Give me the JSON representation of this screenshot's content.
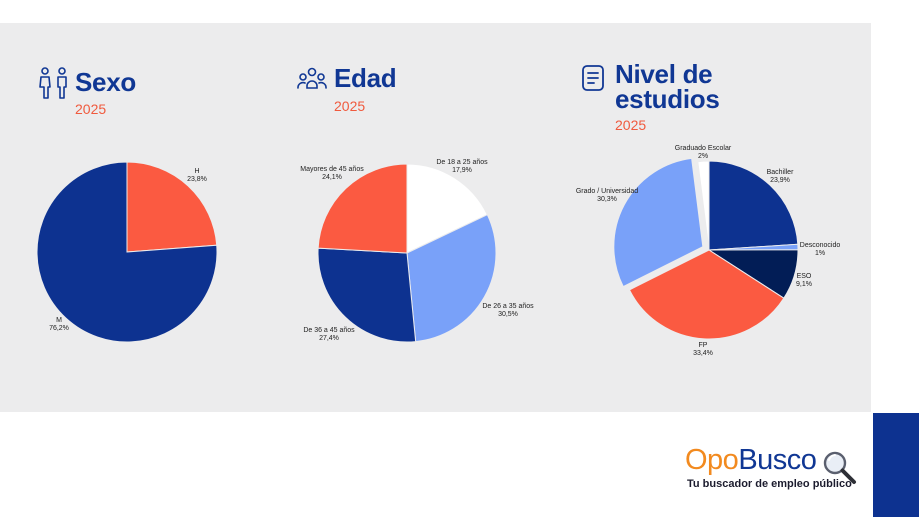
{
  "colors": {
    "navy": "#0d3290",
    "coral": "#fb5a41",
    "light_blue": "#79a1f9",
    "dark_navy": "#021d56",
    "white": "#ffffff",
    "background": "#ececed"
  },
  "sections": [
    {
      "title_line1": "Sexo",
      "title_line2": "",
      "year": "2025",
      "icon": "people-icon"
    },
    {
      "title_line1": "Edad",
      "title_line2": "",
      "year": "2025",
      "icon": "group-icon"
    },
    {
      "title_line1": "Nivel de",
      "title_line2": "estudios",
      "year": "2025",
      "icon": "book-icon"
    }
  ],
  "chart_data": [
    {
      "type": "pie",
      "title": "Sexo",
      "slices": [
        {
          "label": "H",
          "value": 23.8,
          "display": "23,8%",
          "color": "#fb5a41"
        },
        {
          "label": "M",
          "value": 76.2,
          "display": "76,2%",
          "color": "#0d3290"
        }
      ]
    },
    {
      "type": "pie",
      "title": "Edad",
      "slices": [
        {
          "label": "De 18 a 25 años",
          "value": 17.9,
          "display": "17,9%",
          "color": "#ffffff"
        },
        {
          "label": "De 26 a 35 años",
          "value": 30.5,
          "display": "30,5%",
          "color": "#79a1f9"
        },
        {
          "label": "De 36 a 45 años",
          "value": 27.4,
          "display": "27,4%",
          "color": "#0d3290"
        },
        {
          "label": "Mayores de 45 años",
          "value": 24.1,
          "display": "24,1%",
          "color": "#fb5a41"
        }
      ]
    },
    {
      "type": "pie",
      "title": "Nivel de estudios",
      "slices": [
        {
          "label": "Bachiller",
          "value": 23.9,
          "display": "23,9%",
          "color": "#0d3290"
        },
        {
          "label": "Desconocido",
          "value": 1,
          "display": "1%",
          "color": "#79a1f9"
        },
        {
          "label": "ESO",
          "value": 9.1,
          "display": "9,1%",
          "color": "#021d56"
        },
        {
          "label": "FP",
          "value": 33.4,
          "display": "33,4%",
          "color": "#fb5a41"
        },
        {
          "label": "Grado / Universidad",
          "value": 30.3,
          "display": "30,3%",
          "color": "#79a1f9"
        },
        {
          "label": "Graduado Escolar",
          "value": 2,
          "display": "2%",
          "color": "#ffffff"
        }
      ]
    }
  ],
  "logo": {
    "part1": "Opo",
    "part2": "Busco",
    "tagline": "Tu buscador de empleo público"
  }
}
